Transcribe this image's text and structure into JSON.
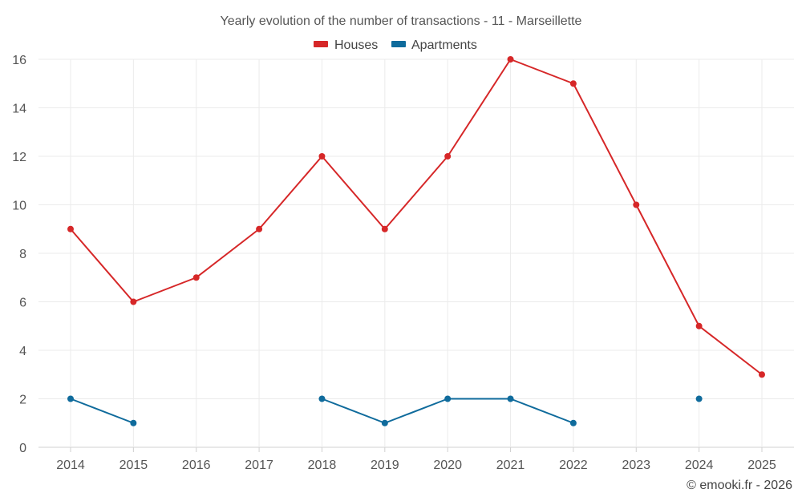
{
  "chart_data": {
    "type": "line",
    "title": "Yearly evolution of the number of transactions - 11 - Marseillette",
    "categories": [
      "2014",
      "2015",
      "2016",
      "2017",
      "2018",
      "2019",
      "2020",
      "2021",
      "2022",
      "2023",
      "2024",
      "2025"
    ],
    "series": [
      {
        "name": "Houses",
        "color": "#d62728",
        "values": [
          9,
          6,
          7,
          9,
          12,
          9,
          12,
          16,
          15,
          10,
          5,
          3
        ]
      },
      {
        "name": "Apartments",
        "color": "#0f6b9c",
        "values": [
          2,
          1,
          null,
          null,
          2,
          1,
          2,
          2,
          1,
          null,
          2,
          null
        ]
      }
    ],
    "ylim": [
      0,
      16
    ],
    "yticks": [
      0,
      2,
      4,
      6,
      8,
      10,
      12,
      14,
      16
    ],
    "xlabel": "",
    "ylabel": "",
    "grid": true,
    "legend": "top-center"
  },
  "credit": "© emooki.fr - 2026"
}
